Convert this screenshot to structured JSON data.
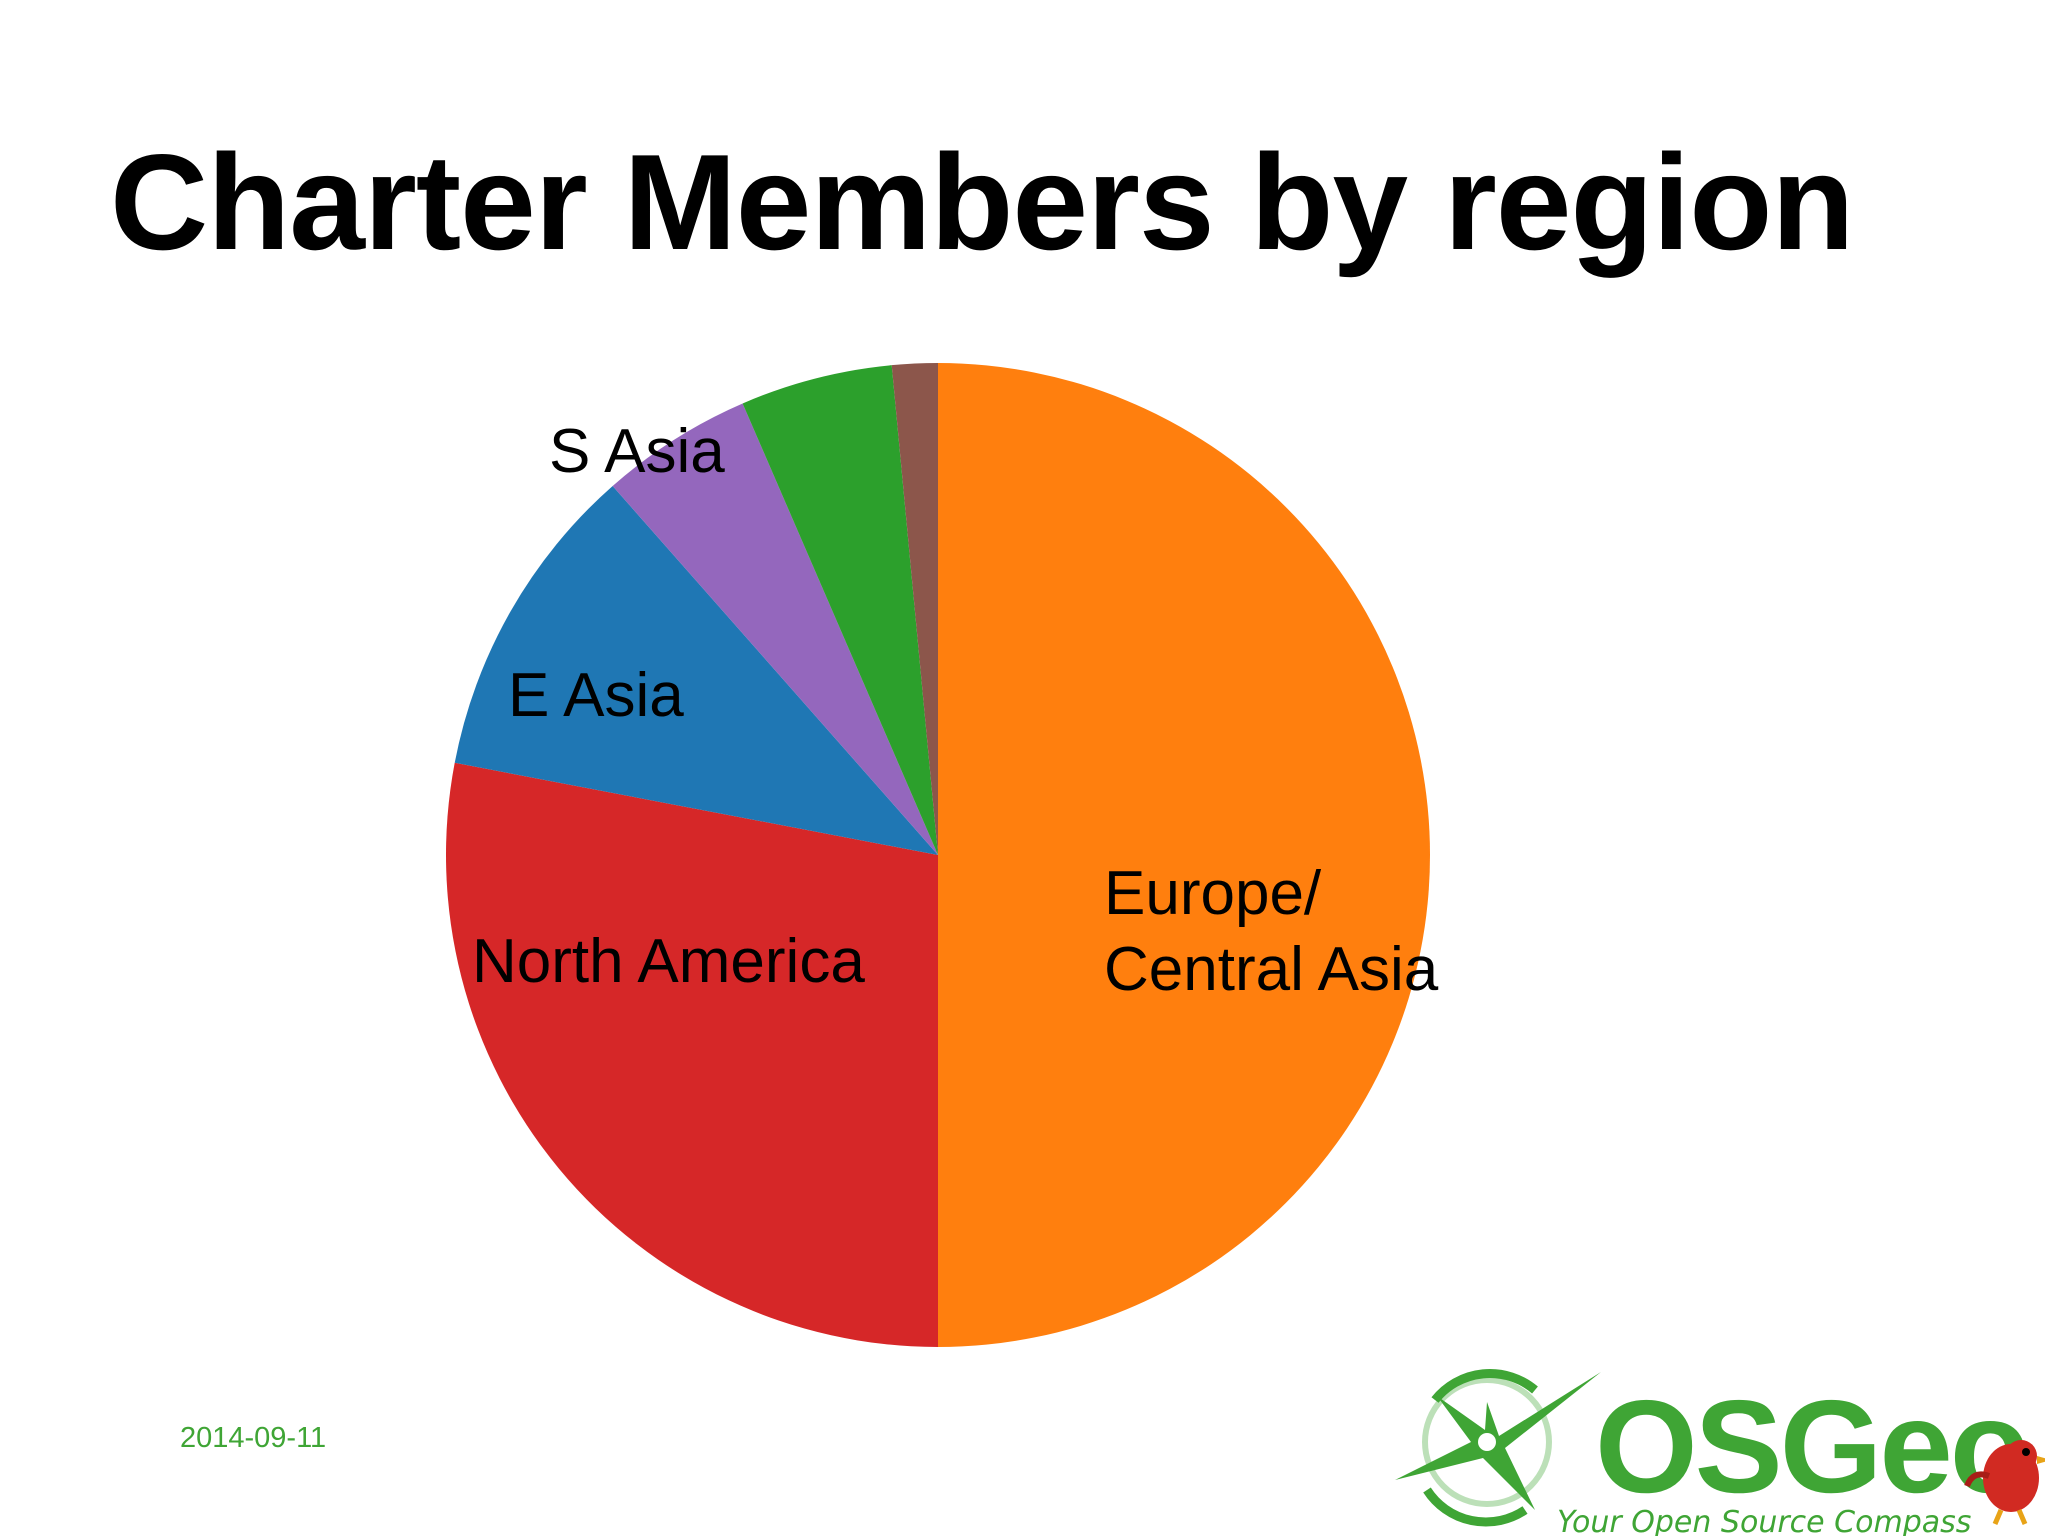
{
  "slide": {
    "title": "Charter Members by region",
    "date": "2014-09-11"
  },
  "logo": {
    "name": "OSGeo",
    "tagline": "Your Open Source Compass"
  },
  "colors": {
    "europe_central_asia": "#ff7f0e",
    "north_america": "#d62728",
    "e_asia": "#1f77b4",
    "s_asia": "#9467bd",
    "green_slice": "#2ca02c",
    "brown_slice": "#8c564b",
    "logo_green": "#3fa535"
  },
  "chart_data": {
    "type": "pie",
    "title": "Charter Members by region",
    "start_angle": "top (12 o'clock), clockwise",
    "slices": [
      {
        "label": "Europe/\nCentral Asia",
        "value": 50.0,
        "color": "#ff7f0e"
      },
      {
        "label": "North America",
        "value": 28.0,
        "color": "#d62728"
      },
      {
        "label": "E Asia",
        "value": 10.5,
        "color": "#1f77b4"
      },
      {
        "label": "S Asia",
        "value": 5.0,
        "color": "#9467bd"
      },
      {
        "label": "",
        "value": 5.0,
        "color": "#2ca02c"
      },
      {
        "label": "",
        "value": 1.5,
        "color": "#8c564b"
      }
    ]
  }
}
